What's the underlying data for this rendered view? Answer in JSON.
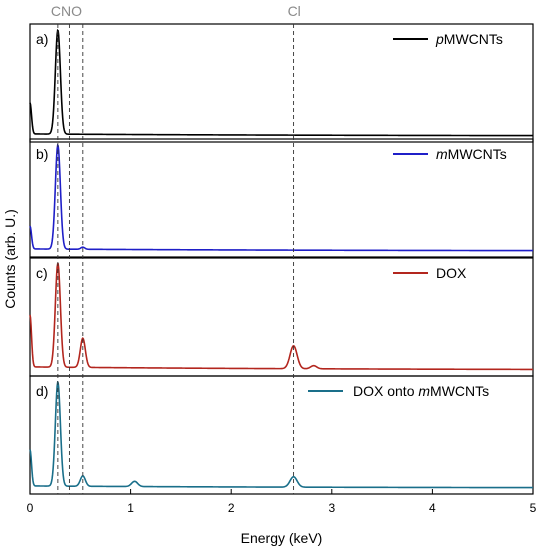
{
  "chart_data": {
    "type": "line",
    "xlabel": "Energy (keV)",
    "ylabel": "Counts (arb. U.)",
    "xlim": [
      0,
      5
    ],
    "x_ticks": [
      "0",
      "1",
      "2",
      "3",
      "4",
      "5"
    ],
    "grid": false,
    "reference_lines": [
      {
        "label": "C",
        "x": 0.277
      },
      {
        "label": "N",
        "x": 0.392
      },
      {
        "label": "O",
        "x": 0.525
      },
      {
        "label": "Cl",
        "x": 2.62
      }
    ],
    "element_labels": {
      "cno": "CNO",
      "cl": "Cl"
    },
    "legend_placement": "top-right",
    "panels": [
      {
        "label": "a)",
        "series_name_prefix": "p",
        "series_name_rest": "MWCNTs",
        "color": "#000000",
        "baseline": 0.02,
        "peaks": [
          {
            "x": 0.0,
            "height": 0.3,
            "width": 0.015
          },
          {
            "x": 0.277,
            "height": 1.0,
            "width": 0.025
          }
        ]
      },
      {
        "label": "b)",
        "series_name_prefix": "m",
        "series_name_rest": "MWCNTs",
        "color": "#1f1fc8",
        "baseline": 0.02,
        "peaks": [
          {
            "x": 0.0,
            "height": 0.22,
            "width": 0.015
          },
          {
            "x": 0.277,
            "height": 1.0,
            "width": 0.025
          },
          {
            "x": 0.525,
            "height": 0.02,
            "width": 0.02
          }
        ]
      },
      {
        "label": "c)",
        "series_name_prefix": "",
        "series_name_rest": "DOX",
        "color": "#b3261e",
        "baseline": 0.03,
        "peaks": [
          {
            "x": 0.0,
            "height": 0.5,
            "width": 0.015
          },
          {
            "x": 0.277,
            "height": 1.0,
            "width": 0.025
          },
          {
            "x": 0.525,
            "height": 0.28,
            "width": 0.025
          },
          {
            "x": 2.62,
            "height": 0.22,
            "width": 0.035
          },
          {
            "x": 2.82,
            "height": 0.03,
            "width": 0.03
          }
        ]
      },
      {
        "label": "d)",
        "series_name_prefix": "DOX onto ",
        "series_name_italic": "m",
        "series_name_rest": "MWCNTs",
        "color": "#1a6f8a",
        "baseline": 0.02,
        "peaks": [
          {
            "x": 0.0,
            "height": 0.35,
            "width": 0.015
          },
          {
            "x": 0.277,
            "height": 1.0,
            "width": 0.025
          },
          {
            "x": 0.525,
            "height": 0.1,
            "width": 0.025
          },
          {
            "x": 1.04,
            "height": 0.05,
            "width": 0.03
          },
          {
            "x": 2.62,
            "height": 0.1,
            "width": 0.035
          }
        ]
      }
    ]
  }
}
